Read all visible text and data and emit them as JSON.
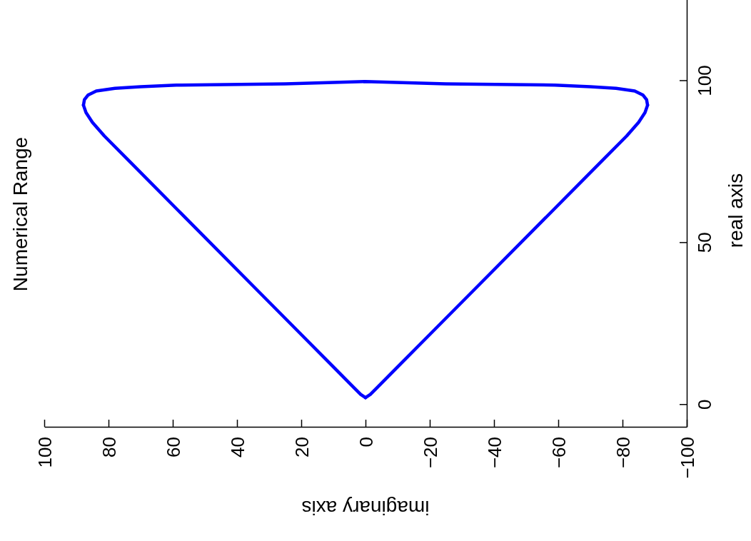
{
  "chart_data": {
    "type": "line",
    "title": "Numerical Range",
    "xlabel": "imaginary axis",
    "ylabel": "real axis",
    "xlim": [
      100,
      -100
    ],
    "xticks": [
      100,
      80,
      60,
      40,
      20,
      0,
      {
        "value": -20,
        "label": "−20"
      },
      {
        "value": -40,
        "label": "−40"
      },
      {
        "value": -60,
        "label": "−60"
      },
      {
        "value": -80,
        "label": "−80"
      },
      {
        "value": -100,
        "label": "−100"
      }
    ],
    "ylim": [
      -7,
      125
    ],
    "yticks": [
      0,
      50,
      100
    ],
    "grid": false,
    "series": [
      {
        "color": "#0000ff",
        "values": [
          2,
          3,
          5,
          20,
          40,
          60,
          75,
          82.8,
          87,
          90,
          92.3
        ],
        "x": [
          0,
          1.5,
          3.5,
          18.5,
          38.5,
          58.5,
          73.5,
          81.3,
          85,
          87,
          87.8
        ]
      },
      {
        "color": "#0000ff",
        "values": [
          92.3,
          94,
          95.4,
          96.7,
          97.5,
          98,
          98.5,
          98.9,
          99.6,
          98.9,
          98.5,
          98,
          97.5,
          96.7,
          95.4,
          94,
          92.3
        ],
        "x": [
          87.8,
          87.5,
          86.4,
          83.8,
          78,
          70,
          58.9,
          25,
          0,
          -25,
          -58.9,
          -70,
          -78,
          -83.8,
          -86.4,
          -87.5,
          -87.8
        ]
      },
      {
        "color": "#0000ff",
        "values": [
          92.3,
          90,
          87,
          82.8,
          75,
          60,
          40,
          20,
          5,
          3,
          2
        ],
        "x": [
          -87.8,
          -87,
          -85,
          -81.3,
          -73.5,
          -58.5,
          -38.5,
          -18.5,
          -3.5,
          -1.5,
          0
        ]
      }
    ]
  }
}
